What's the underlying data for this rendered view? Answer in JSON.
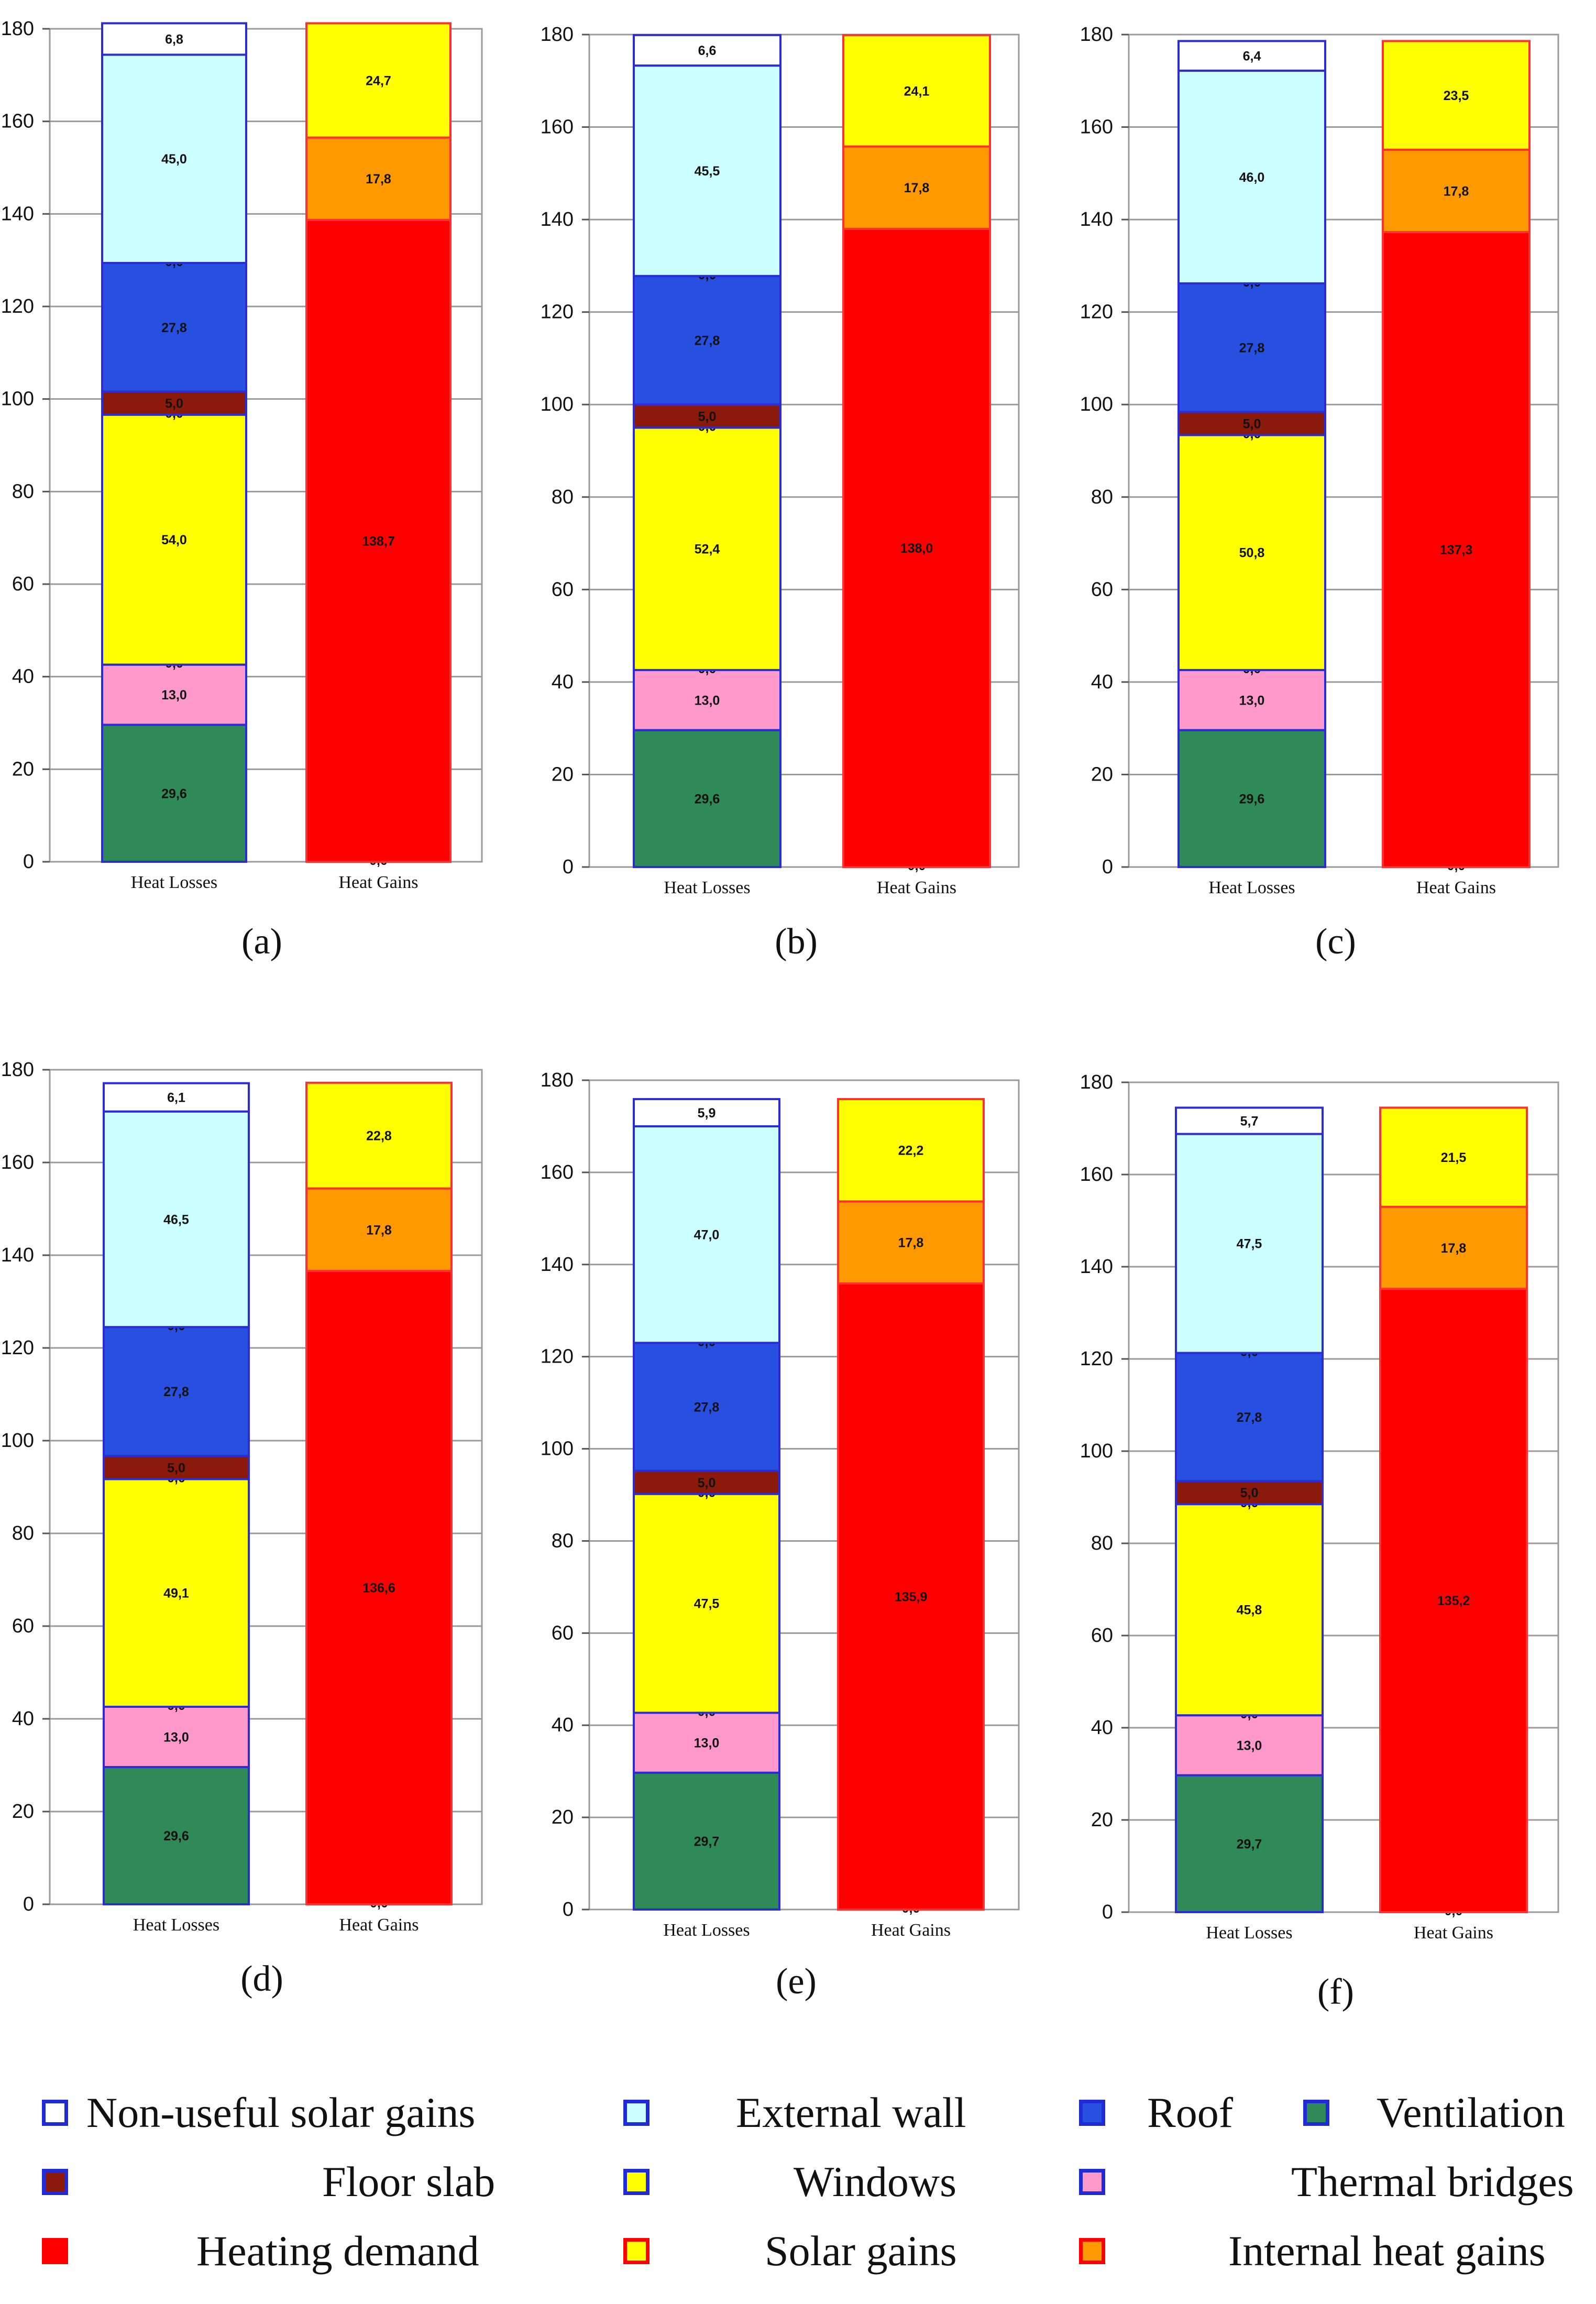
{
  "colors": {
    "non_useful_solar": "#ffffff",
    "external_wall": "#ccffff",
    "roof": "#2850e0",
    "ventilation": "#2e8b57",
    "floor_slab": "#8b1a0b",
    "windows": "#ffff00",
    "thermal_bridges": "#ff99cc",
    "heating_demand": "#ff0000",
    "solar_gains": "#ffff00",
    "internal_gains": "#ff9900",
    "outline": "#2b2bd8"
  },
  "legend": {
    "items": [
      {
        "key": "non_useful_solar",
        "label": "Non-useful solar gains",
        "fill": "#ffffff",
        "border": "#1f2bd6"
      },
      {
        "key": "external_wall",
        "label": "External wall",
        "fill": "#ccffff",
        "border": "#1f2bd6"
      },
      {
        "key": "roof",
        "label": "Roof",
        "fill": "#2850e0",
        "border": "#1f2bd6"
      },
      {
        "key": "ventilation",
        "label": "Ventilation",
        "fill": "#2e8b57",
        "border": "#1f2bd6"
      },
      {
        "key": "floor_slab",
        "label": "Floor slab",
        "fill": "#8b1a0b",
        "border": "#1f2bd6"
      },
      {
        "key": "windows",
        "label": "Windows",
        "fill": "#ffff00",
        "border": "#1f2bd6"
      },
      {
        "key": "thermal_bridges",
        "label": "Thermal bridges",
        "fill": "#ff99cc",
        "border": "#1f2bd6"
      },
      {
        "key": "heating_demand",
        "label": "Heating demand",
        "fill": "#ff0000",
        "border": "#ff0000"
      },
      {
        "key": "solar_gains",
        "label": "Solar gains",
        "fill": "#ffff00",
        "border": "#ff0000"
      },
      {
        "key": "internal_gains",
        "label": "Internal heat gains",
        "fill": "#ff9900",
        "border": "#ff0000"
      }
    ]
  },
  "chart_data": [
    {
      "type": "bar",
      "stacked": true,
      "panel_label": "(a)",
      "categories": [
        "Heat Losses",
        "Heat Gains"
      ],
      "ylim": [
        0,
        180
      ],
      "yticks": [
        0,
        20,
        40,
        60,
        80,
        100,
        120,
        140,
        160,
        180
      ],
      "grid": true,
      "losses": [
        {
          "key": "ventilation",
          "value": 29.6,
          "label": "29,6"
        },
        {
          "key": "thermal_bridges",
          "value": 13.0,
          "label": "13,0"
        },
        {
          "key": "zero",
          "value": 0,
          "label": "0,0"
        },
        {
          "key": "windows",
          "value": 54.0,
          "label": "54,0"
        },
        {
          "key": "zero",
          "value": 0,
          "label": "0,0"
        },
        {
          "key": "floor_slab",
          "value": 5.0,
          "label": "5,0"
        },
        {
          "key": "roof",
          "value": 27.8,
          "label": "27,8"
        },
        {
          "key": "zero",
          "value": 0,
          "label": "0,0"
        },
        {
          "key": "external_wall",
          "value": 45.0,
          "label": "45,0"
        },
        {
          "key": "non_useful_solar",
          "value": 6.8,
          "label": "6,8"
        }
      ],
      "gains": [
        {
          "key": "zero",
          "value": 0,
          "label": "0,0"
        },
        {
          "key": "heating_demand",
          "value": 138.7,
          "label": "138,7"
        },
        {
          "key": "internal_gains",
          "value": 17.8,
          "label": "17,8"
        },
        {
          "key": "solar_gains",
          "value": 24.7,
          "label": "24,7"
        }
      ]
    },
    {
      "type": "bar",
      "stacked": true,
      "panel_label": "(b)",
      "categories": [
        "Heat Losses",
        "Heat Gains"
      ],
      "ylim": [
        0,
        180
      ],
      "yticks": [
        0,
        20,
        40,
        60,
        80,
        100,
        120,
        140,
        160,
        180
      ],
      "grid": true,
      "losses": [
        {
          "key": "ventilation",
          "value": 29.6,
          "label": "29,6"
        },
        {
          "key": "thermal_bridges",
          "value": 13.0,
          "label": "13,0"
        },
        {
          "key": "zero",
          "value": 0,
          "label": "0,0"
        },
        {
          "key": "windows",
          "value": 52.4,
          "label": "52,4"
        },
        {
          "key": "zero",
          "value": 0,
          "label": "0,0"
        },
        {
          "key": "floor_slab",
          "value": 5.0,
          "label": "5,0"
        },
        {
          "key": "roof",
          "value": 27.8,
          "label": "27,8"
        },
        {
          "key": "zero",
          "value": 0,
          "label": "0,0"
        },
        {
          "key": "external_wall",
          "value": 45.5,
          "label": "45,5"
        },
        {
          "key": "non_useful_solar",
          "value": 6.6,
          "label": "6,6"
        }
      ],
      "gains": [
        {
          "key": "zero",
          "value": 0,
          "label": "0,0"
        },
        {
          "key": "heating_demand",
          "value": 138.0,
          "label": "138,0"
        },
        {
          "key": "internal_gains",
          "value": 17.8,
          "label": "17,8"
        },
        {
          "key": "solar_gains",
          "value": 24.1,
          "label": "24,1"
        }
      ]
    },
    {
      "type": "bar",
      "stacked": true,
      "panel_label": "(c)",
      "categories": [
        "Heat Losses",
        "Heat Gains"
      ],
      "ylim": [
        0,
        180
      ],
      "yticks": [
        0,
        20,
        40,
        60,
        80,
        100,
        120,
        140,
        160,
        180
      ],
      "grid": true,
      "losses": [
        {
          "key": "ventilation",
          "value": 29.6,
          "label": "29,6"
        },
        {
          "key": "thermal_bridges",
          "value": 13.0,
          "label": "13,0"
        },
        {
          "key": "zero",
          "value": 0,
          "label": "0,0"
        },
        {
          "key": "windows",
          "value": 50.8,
          "label": "50,8"
        },
        {
          "key": "zero",
          "value": 0,
          "label": "0,0"
        },
        {
          "key": "floor_slab",
          "value": 5.0,
          "label": "5,0"
        },
        {
          "key": "roof",
          "value": 27.8,
          "label": "27,8"
        },
        {
          "key": "zero",
          "value": 0,
          "label": "0,0"
        },
        {
          "key": "external_wall",
          "value": 46.0,
          "label": "46,0"
        },
        {
          "key": "non_useful_solar",
          "value": 6.4,
          "label": "6,4"
        }
      ],
      "gains": [
        {
          "key": "zero",
          "value": 0,
          "label": "0,0"
        },
        {
          "key": "heating_demand",
          "value": 137.3,
          "label": "137,3"
        },
        {
          "key": "internal_gains",
          "value": 17.8,
          "label": "17,8"
        },
        {
          "key": "solar_gains",
          "value": 23.5,
          "label": "23,5"
        }
      ]
    },
    {
      "type": "bar",
      "stacked": true,
      "panel_label": "(d)",
      "categories": [
        "Heat Losses",
        "Heat Gains"
      ],
      "ylim": [
        0,
        180
      ],
      "yticks": [
        0,
        20,
        40,
        60,
        80,
        100,
        120,
        140,
        160,
        180
      ],
      "grid": true,
      "losses": [
        {
          "key": "ventilation",
          "value": 29.6,
          "label": "29,6"
        },
        {
          "key": "thermal_bridges",
          "value": 13.0,
          "label": "13,0"
        },
        {
          "key": "zero",
          "value": 0,
          "label": "0,0"
        },
        {
          "key": "windows",
          "value": 49.1,
          "label": "49,1"
        },
        {
          "key": "zero",
          "value": 0,
          "label": "0,0"
        },
        {
          "key": "floor_slab",
          "value": 5.0,
          "label": "5,0"
        },
        {
          "key": "roof",
          "value": 27.8,
          "label": "27,8"
        },
        {
          "key": "zero",
          "value": 0,
          "label": "0,0"
        },
        {
          "key": "external_wall",
          "value": 46.5,
          "label": "46,5"
        },
        {
          "key": "non_useful_solar",
          "value": 6.1,
          "label": "6,1"
        }
      ],
      "gains": [
        {
          "key": "zero",
          "value": 0,
          "label": "0,0"
        },
        {
          "key": "heating_demand",
          "value": 136.6,
          "label": "136,6"
        },
        {
          "key": "internal_gains",
          "value": 17.8,
          "label": "17,8"
        },
        {
          "key": "solar_gains",
          "value": 22.8,
          "label": "22,8"
        }
      ]
    },
    {
      "type": "bar",
      "stacked": true,
      "panel_label": "(e)",
      "categories": [
        "Heat Losses",
        "Heat Gains"
      ],
      "ylim": [
        0,
        180
      ],
      "yticks": [
        0,
        20,
        40,
        60,
        80,
        100,
        120,
        140,
        160,
        180
      ],
      "grid": true,
      "losses": [
        {
          "key": "ventilation",
          "value": 29.7,
          "label": "29,7"
        },
        {
          "key": "thermal_bridges",
          "value": 13.0,
          "label": "13,0"
        },
        {
          "key": "zero",
          "value": 0,
          "label": "0,0"
        },
        {
          "key": "windows",
          "value": 47.5,
          "label": "47,5"
        },
        {
          "key": "zero",
          "value": 0,
          "label": "0,0"
        },
        {
          "key": "floor_slab",
          "value": 5.0,
          "label": "5,0"
        },
        {
          "key": "roof",
          "value": 27.8,
          "label": "27,8"
        },
        {
          "key": "zero",
          "value": 0,
          "label": "0,0"
        },
        {
          "key": "external_wall",
          "value": 47.0,
          "label": "47,0"
        },
        {
          "key": "non_useful_solar",
          "value": 5.9,
          "label": "5,9"
        }
      ],
      "gains": [
        {
          "key": "zero",
          "value": 0,
          "label": "0,0"
        },
        {
          "key": "heating_demand",
          "value": 135.9,
          "label": "135,9"
        },
        {
          "key": "internal_gains",
          "value": 17.8,
          "label": "17,8"
        },
        {
          "key": "solar_gains",
          "value": 22.2,
          "label": "22,2"
        }
      ]
    },
    {
      "type": "bar",
      "stacked": true,
      "panel_label": "(f)",
      "categories": [
        "Heat Losses",
        "Heat Gains"
      ],
      "ylim": [
        0,
        180
      ],
      "yticks": [
        0,
        20,
        40,
        60,
        80,
        100,
        120,
        140,
        160,
        180
      ],
      "grid": true,
      "losses": [
        {
          "key": "ventilation",
          "value": 29.7,
          "label": "29,7"
        },
        {
          "key": "thermal_bridges",
          "value": 13.0,
          "label": "13,0"
        },
        {
          "key": "zero",
          "value": 0,
          "label": "0,0"
        },
        {
          "key": "windows",
          "value": 45.8,
          "label": "45,8"
        },
        {
          "key": "zero",
          "value": 0,
          "label": "0,0"
        },
        {
          "key": "floor_slab",
          "value": 5.0,
          "label": "5,0"
        },
        {
          "key": "roof",
          "value": 27.8,
          "label": "27,8"
        },
        {
          "key": "zero",
          "value": 0,
          "label": "0,0"
        },
        {
          "key": "external_wall",
          "value": 47.5,
          "label": "47,5"
        },
        {
          "key": "non_useful_solar",
          "value": 5.7,
          "label": "5,7"
        }
      ],
      "gains": [
        {
          "key": "zero",
          "value": 0,
          "label": "0,0"
        },
        {
          "key": "heating_demand",
          "value": 135.2,
          "label": "135,2"
        },
        {
          "key": "internal_gains",
          "value": 17.8,
          "label": "17,8"
        },
        {
          "key": "solar_gains",
          "value": 21.5,
          "label": "21,5"
        }
      ]
    }
  ]
}
